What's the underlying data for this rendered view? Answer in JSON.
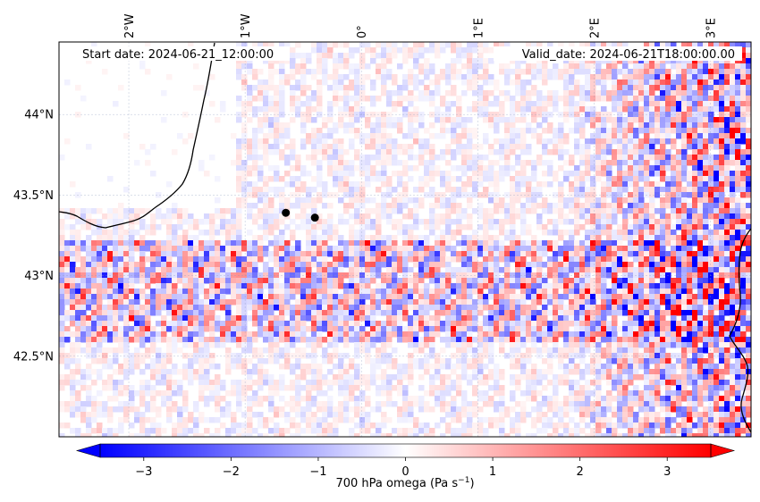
{
  "header": {
    "start_label": "Start date: 2024-06-21_12:00:00",
    "valid_label": "Valid_date: 2024-06-21T18:00:00.00"
  },
  "map": {
    "variable": "700 hPa omega",
    "lon_range": [
      -2.6,
      3.35
    ],
    "lat_range": [
      42.0,
      44.45
    ],
    "lon_ticks": [
      {
        "value": -2,
        "label": "2°W"
      },
      {
        "value": -1,
        "label": "1°W"
      },
      {
        "value": 0,
        "label": "0°"
      },
      {
        "value": 1,
        "label": "1°E"
      },
      {
        "value": 2,
        "label": "2°E"
      },
      {
        "value": 3,
        "label": "3°E"
      }
    ],
    "lat_ticks": [
      {
        "value": 44.0,
        "label": "44°N"
      },
      {
        "value": 43.5,
        "label": "43.5°N"
      },
      {
        "value": 43.0,
        "label": "43°N"
      },
      {
        "value": 42.5,
        "label": "42.5°N"
      }
    ],
    "markers": [
      {
        "lon": -0.65,
        "lat": 43.39
      },
      {
        "lon": -0.4,
        "lat": 43.36
      }
    ],
    "gridlines": true
  },
  "colorbar": {
    "label_prefix": "700 hPa omega (Pa s",
    "label_exp": "−1",
    "label_suffix": ")",
    "range": [
      -3.5,
      3.5
    ],
    "extend": "both",
    "cmap_colors": [
      "#0000ff",
      "#ffffff",
      "#ff0000"
    ],
    "ticks": [
      {
        "value": -3,
        "label": "−3"
      },
      {
        "value": -2,
        "label": "−2"
      },
      {
        "value": -1,
        "label": "−1"
      },
      {
        "value": 0,
        "label": "0"
      },
      {
        "value": 1,
        "label": "1"
      },
      {
        "value": 2,
        "label": "2"
      },
      {
        "value": 3,
        "label": "3"
      }
    ]
  }
}
